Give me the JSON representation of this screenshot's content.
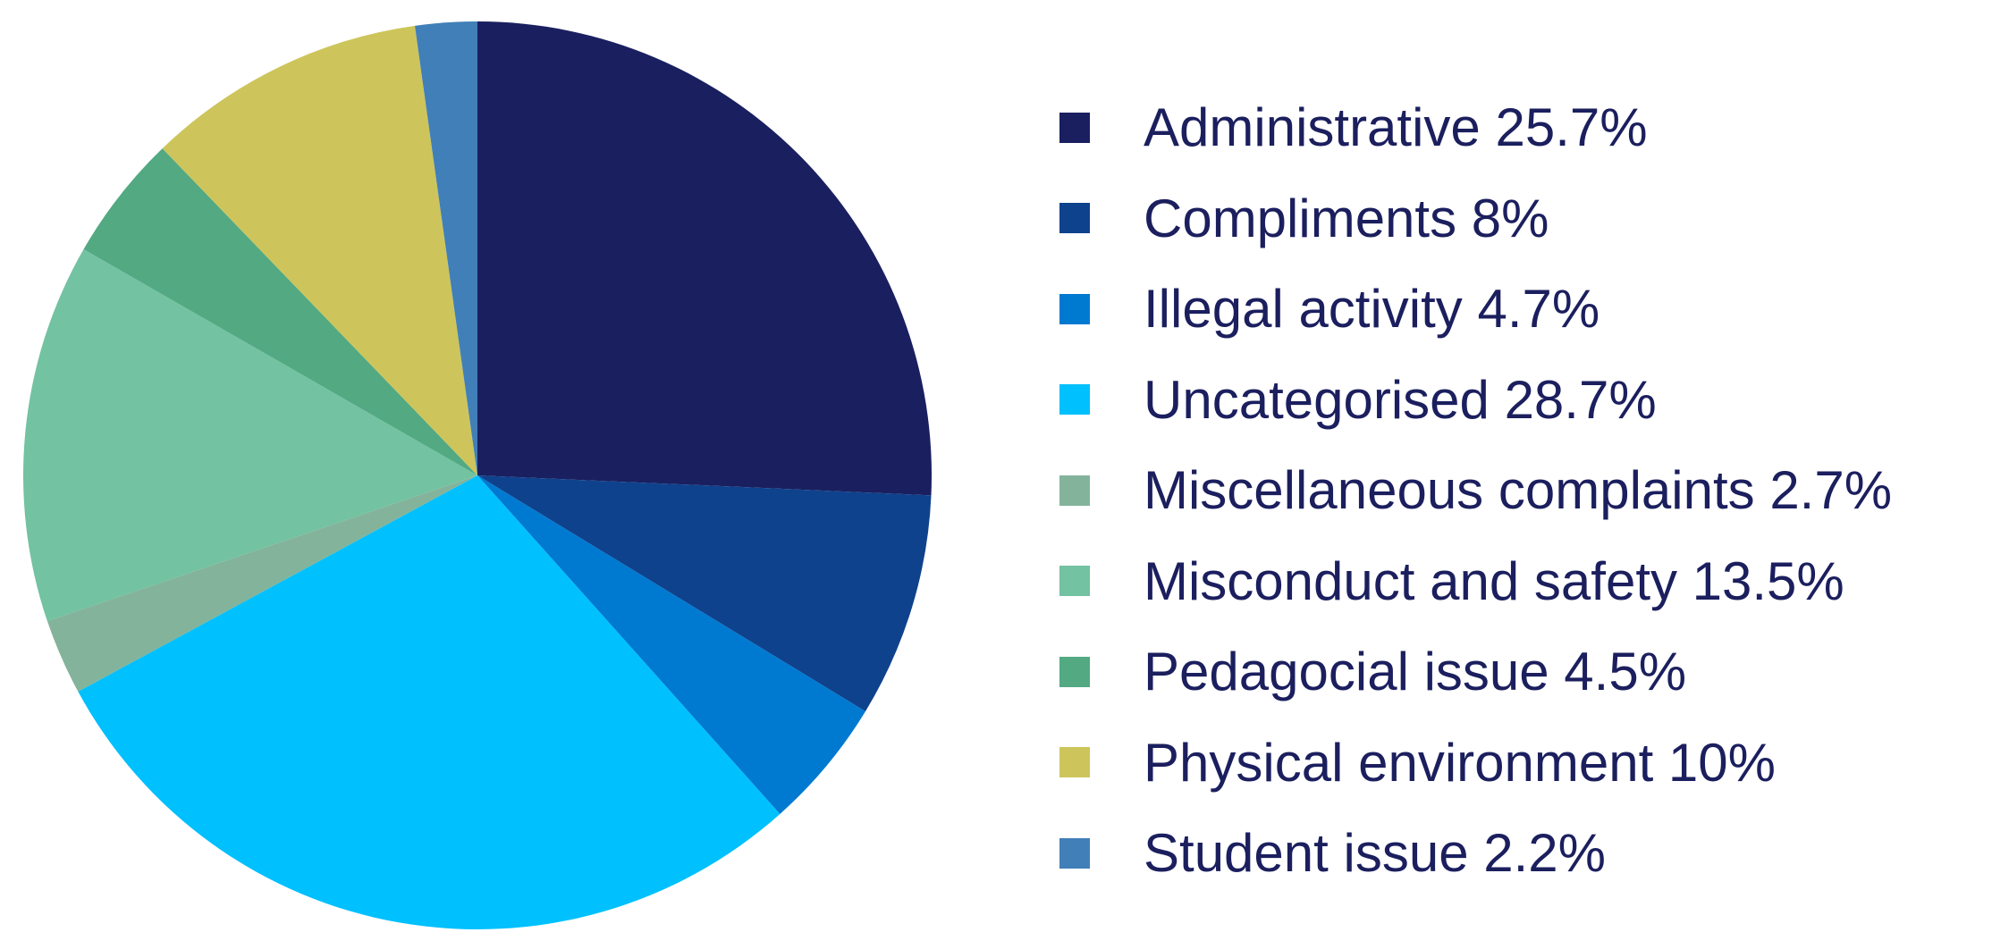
{
  "chart_data": {
    "type": "pie",
    "title": "",
    "start": "12 o'clock",
    "direction": "clockwise",
    "legend_position": "right",
    "slices": [
      {
        "label": "Administrative 25.7%",
        "category": "Administrative",
        "value": 25.7,
        "color": "#1a1f60"
      },
      {
        "label": "Compliments 8%",
        "category": "Compliments",
        "value": 8,
        "color": "#0f428c"
      },
      {
        "label": "Illegal activity 4.7%",
        "category": "Illegal activity",
        "value": 4.7,
        "color": "#0079d1"
      },
      {
        "label": "Uncategorised 28.7%",
        "category": "Uncategorised",
        "value": 28.7,
        "color": "#00c0fe"
      },
      {
        "label": "Miscellaneous complaints 2.7%",
        "category": "Miscellaneous complaints",
        "value": 2.7,
        "color": "#83b49b"
      },
      {
        "label": "Misconduct and safety 13.5%",
        "category": "Misconduct and safety",
        "value": 13.5,
        "color": "#73c2a2"
      },
      {
        "label": "Pedagocial issue 4.5%",
        "category": "Pedagocial issue",
        "value": 4.5,
        "color": "#52a982"
      },
      {
        "label": "Physical environment 10%",
        "category": "Physical environment",
        "value": 10,
        "color": "#cdc55b"
      },
      {
        "label": "Student issue 2.2%",
        "category": "Student issue",
        "value": 2.2,
        "color": "#417fb8"
      }
    ]
  }
}
